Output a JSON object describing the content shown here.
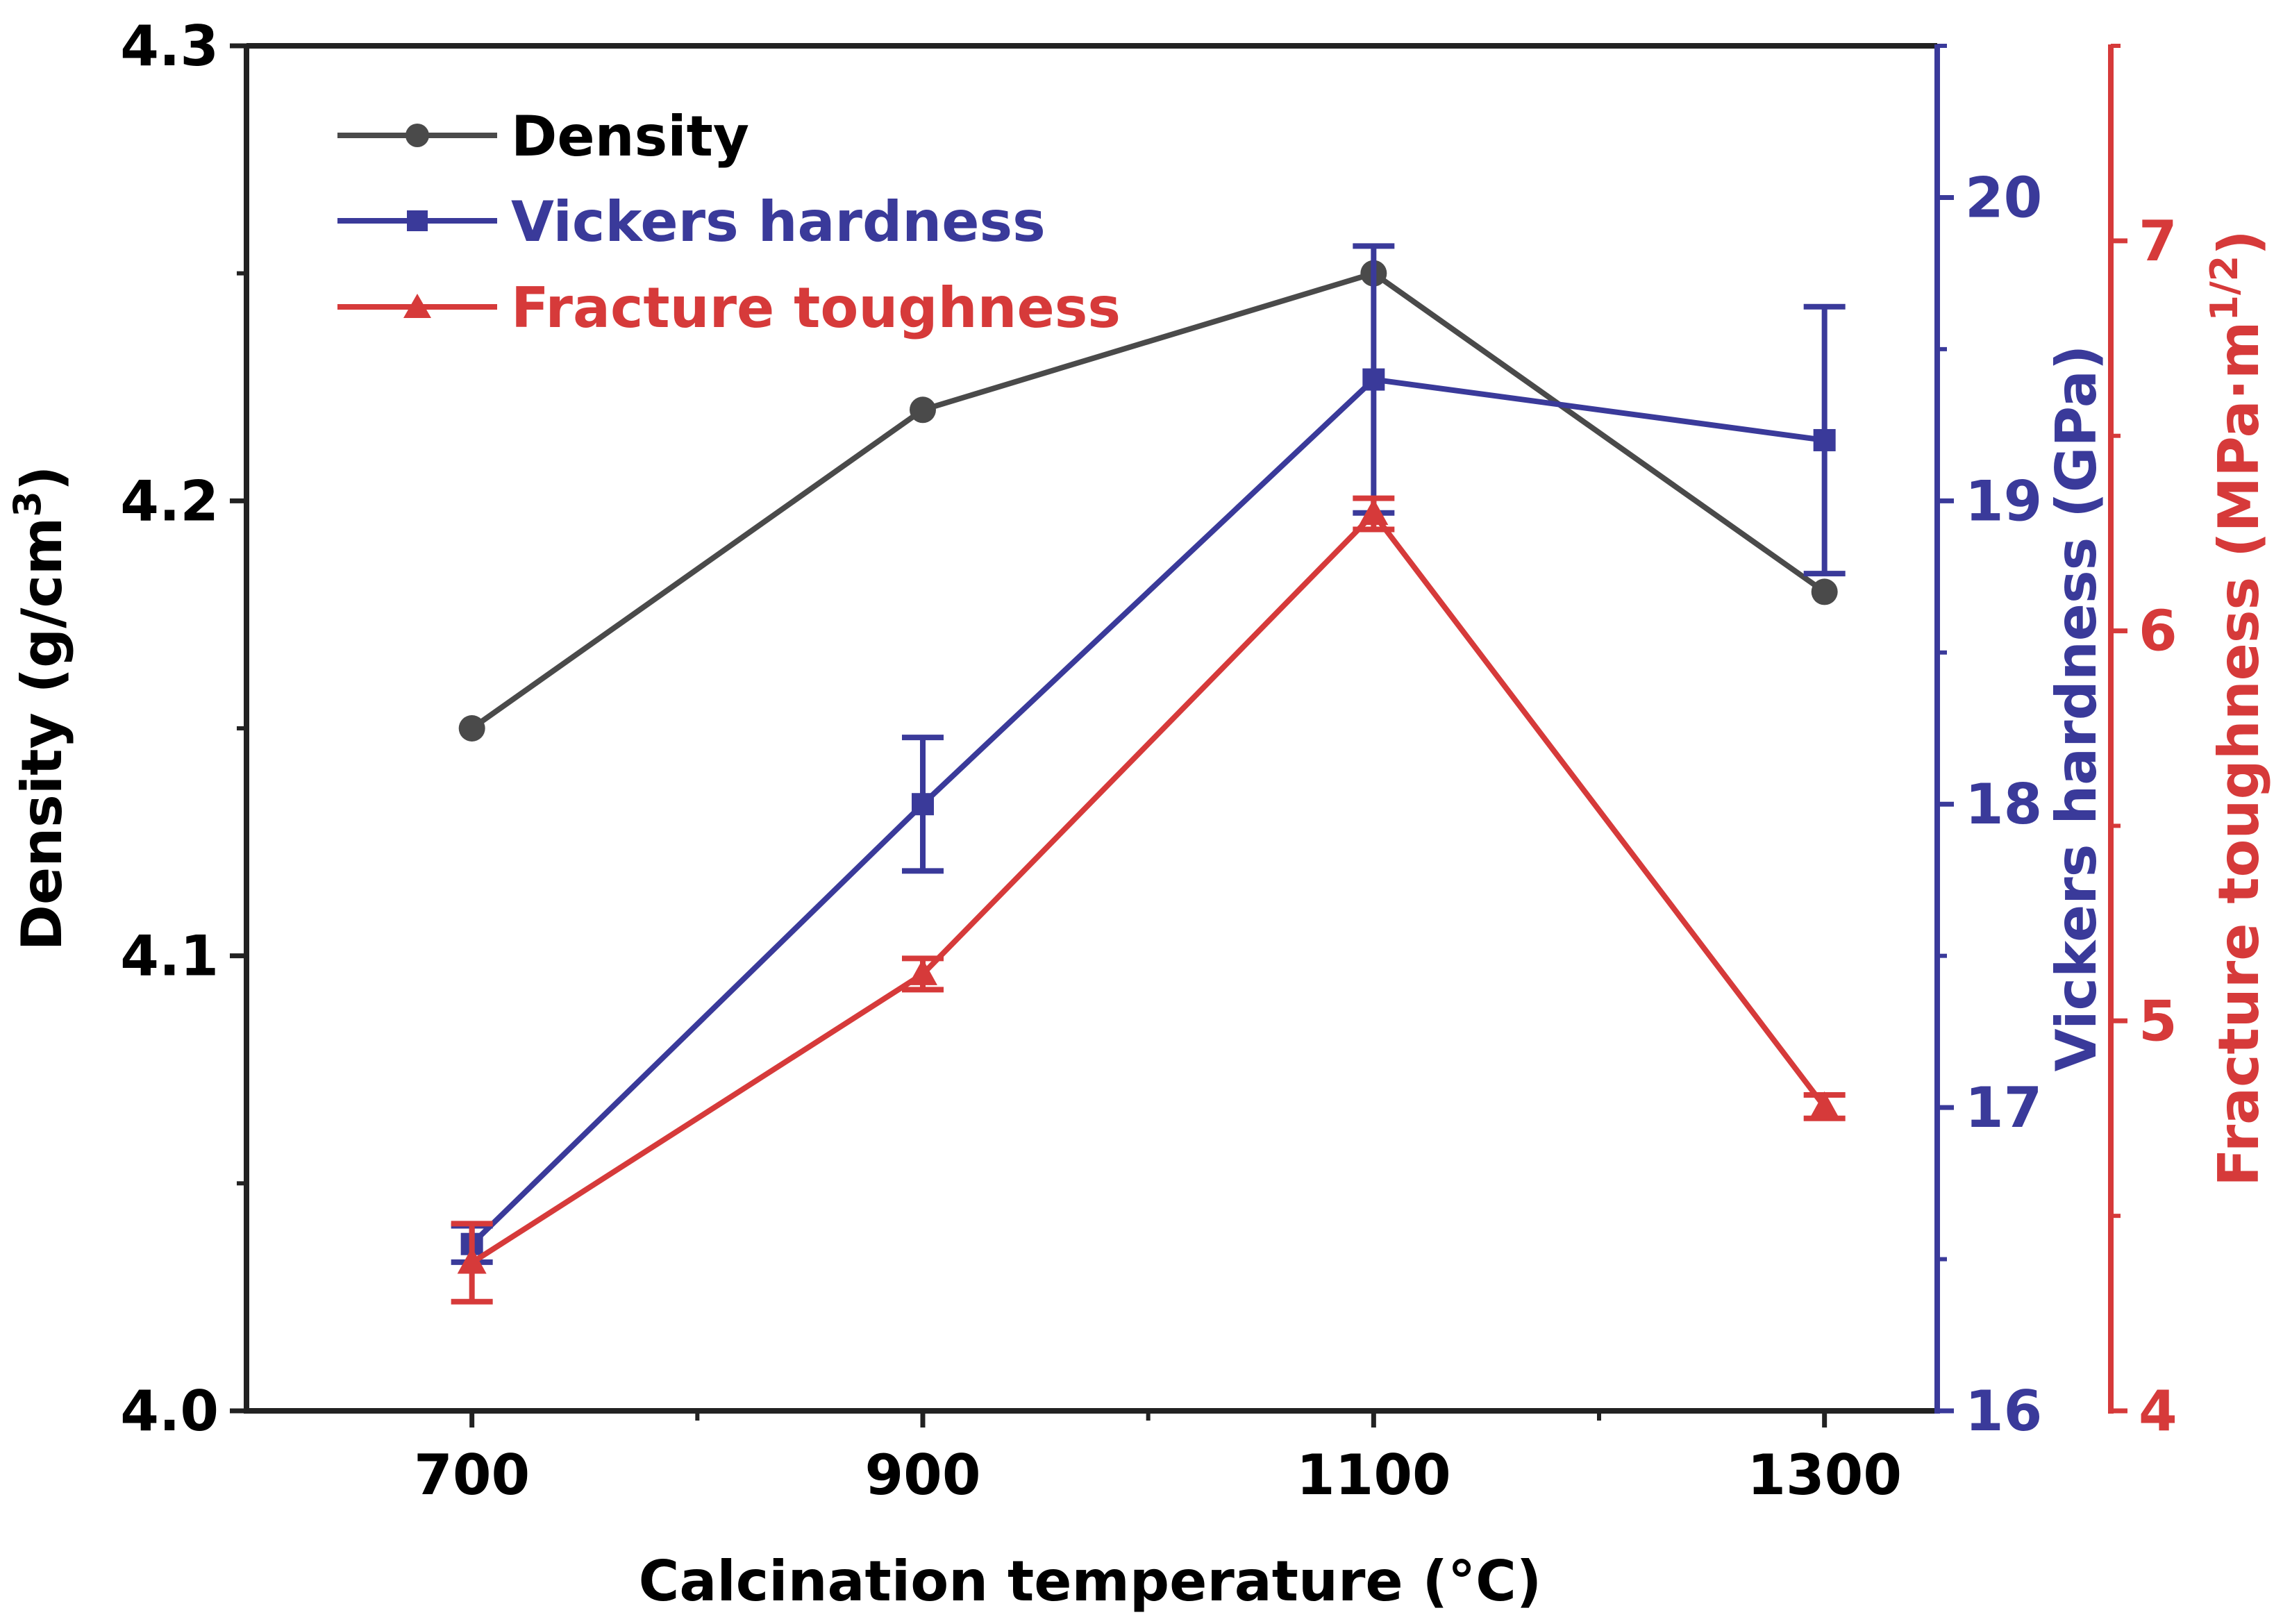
{
  "chart_data": {
    "type": "line",
    "xlabel": "Calcination temperature (°C)",
    "x": [
      700,
      900,
      1100,
      1300
    ],
    "xlim": [
      600,
      1350
    ],
    "xticks": [
      700,
      900,
      1100,
      1300
    ],
    "xtick_labels": [
      "700",
      "900",
      "1100",
      "1300"
    ],
    "axes": {
      "left": {
        "label": "Density (g/cm",
        "label_sup": "3",
        "label_end": ")",
        "ylim": [
          4.0,
          4.3
        ],
        "ticks": [
          4.0,
          4.1,
          4.2,
          4.3
        ],
        "tick_labels": [
          "4.0",
          "4.1",
          "4.2",
          "4.3"
        ],
        "color": "#000000"
      },
      "right1": {
        "label": "Vickers hardness (GPa)",
        "ylim": [
          16,
          20.5
        ],
        "ticks": [
          16,
          17,
          18,
          19,
          20
        ],
        "tick_labels": [
          "16",
          "17",
          "18",
          "19",
          "20"
        ],
        "color": "#3a3a9a"
      },
      "right2": {
        "label": "Fracture toughness (MPa·m",
        "label_sup": "1/2",
        "label_end": ")",
        "ylim": [
          4,
          7.5
        ],
        "ticks": [
          4,
          5,
          6,
          7
        ],
        "tick_labels": [
          "4",
          "5",
          "6",
          "7"
        ],
        "color": "#d63a3a"
      }
    },
    "series": [
      {
        "name": "Density",
        "axis": "left",
        "color": "#4a4a4a",
        "marker": "circle",
        "values": [
          4.15,
          4.22,
          4.25,
          4.18
        ],
        "errors": [
          null,
          null,
          null,
          null
        ]
      },
      {
        "name": "Vickers hardness",
        "axis": "right1",
        "color": "#3a3a9a",
        "marker": "square",
        "values": [
          16.55,
          18.0,
          19.4,
          19.2
        ],
        "errors": [
          0.06,
          0.22,
          0.44,
          0.44
        ]
      },
      {
        "name": "Fracture toughness",
        "axis": "right2",
        "color": "#d63a3a",
        "marker": "triangle",
        "values": [
          4.38,
          5.12,
          6.3,
          4.78
        ],
        "errors": [
          0.1,
          0.04,
          0.04,
          0.03
        ]
      }
    ],
    "legend_position": "top-left"
  }
}
